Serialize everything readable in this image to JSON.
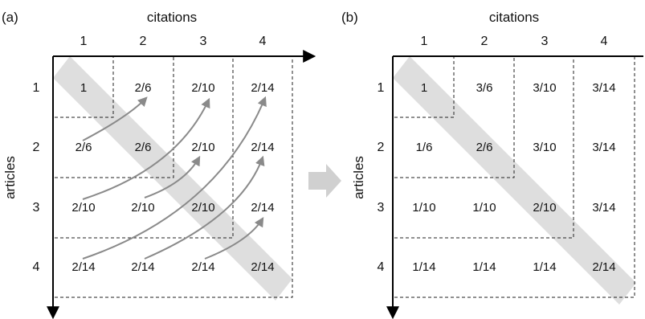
{
  "panels": [
    {
      "id": "a",
      "label": "(a)",
      "x_title": "citations",
      "y_title": "articles",
      "col_labels": [
        "1",
        "2",
        "3",
        "4"
      ],
      "row_labels": [
        "1",
        "2",
        "3",
        "4"
      ],
      "cells": [
        [
          "1",
          "2/6",
          "2/10",
          "2/14"
        ],
        [
          "2/6",
          "2/6",
          "2/10",
          "2/14"
        ],
        [
          "2/10",
          "2/10",
          "2/10",
          "2/14"
        ],
        [
          "2/14",
          "2/14",
          "2/14",
          "2/14"
        ]
      ]
    },
    {
      "id": "b",
      "label": "(b)",
      "x_title": "citations",
      "y_title": "articles",
      "col_labels": [
        "1",
        "2",
        "3",
        "4"
      ],
      "row_labels": [
        "1",
        "2",
        "3",
        "4"
      ],
      "cells": [
        [
          "1",
          "3/6",
          "3/10",
          "3/14"
        ],
        [
          "1/6",
          "2/6",
          "3/10",
          "3/14"
        ],
        [
          "1/10",
          "1/10",
          "2/10",
          "3/14"
        ],
        [
          "1/14",
          "1/14",
          "1/14",
          "2/14"
        ]
      ]
    }
  ],
  "colors": {
    "diagonal_band": "#dedede",
    "flow_arrows": "#8a8a8a",
    "transition_arrow": "#d0d0d0"
  }
}
